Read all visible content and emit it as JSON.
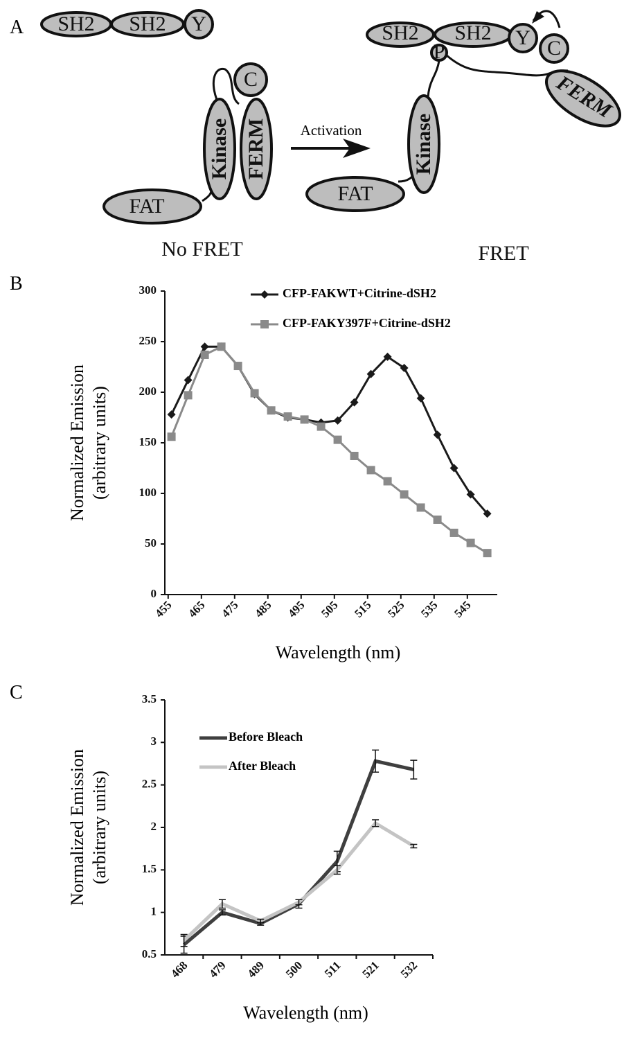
{
  "panel_labels": [
    "A",
    "B",
    "C"
  ],
  "diagram": {
    "left_domains": [
      "SH2",
      "SH2",
      "Y",
      "C",
      "Kinase",
      "FERM",
      "FAT"
    ],
    "left_caption": "No FRET",
    "arrow_label": "Activation",
    "right_domains": [
      "SH2",
      "SH2",
      "Y",
      "C",
      "P",
      "Kinase",
      "FERM",
      "FAT"
    ],
    "right_caption": "FRET"
  },
  "chart_data": [
    {
      "type": "line",
      "x_label": "Wavelength (nm)",
      "y_label": [
        "Normalized Emission",
        "(arbitrary units)"
      ],
      "x": [
        456,
        461,
        466,
        471,
        476,
        481,
        486,
        491,
        496,
        501,
        506,
        511,
        516,
        521,
        526,
        531,
        536,
        541,
        546,
        551
      ],
      "xlim": [
        454,
        554
      ],
      "xticks": [
        455,
        465,
        475,
        485,
        495,
        505,
        515,
        525,
        535,
        545
      ],
      "ylim": [
        0,
        300
      ],
      "yticks": [
        0,
        50,
        100,
        150,
        200,
        250,
        300
      ],
      "legend": "top",
      "series": [
        {
          "name": "CFP-FAKWT+Citrine-dSH2",
          "color": "#1a1a1a",
          "marker": "diamond",
          "values": [
            178,
            212,
            245,
            245,
            226,
            198,
            182,
            175,
            173,
            170,
            172,
            190,
            218,
            235,
            224,
            194,
            158,
            125,
            99,
            80
          ]
        },
        {
          "name": "CFP-FAKY397F+Citrine-dSH2",
          "color": "#8a8a8a",
          "marker": "square",
          "values": [
            156,
            197,
            237,
            245,
            226,
            199,
            182,
            176,
            173,
            166,
            153,
            137,
            123,
            112,
            99,
            86,
            74,
            61,
            51,
            41
          ]
        }
      ]
    },
    {
      "type": "line",
      "x_label": "Wavelength (nm)",
      "y_label": [
        "Normalized Emission",
        "(arbitrary units)"
      ],
      "categories": [
        "468",
        "479",
        "489",
        "500",
        "511",
        "521",
        "532"
      ],
      "ylim": [
        0.5,
        3.5
      ],
      "yticks": [
        0.5,
        1,
        1.5,
        2,
        2.5,
        3,
        3.5
      ],
      "legend": "top-left",
      "series": [
        {
          "name": "Before Bleach",
          "color": "#3f3f3f",
          "values": [
            0.62,
            1.0,
            0.87,
            1.1,
            1.6,
            2.78,
            2.68
          ],
          "errors": [
            0.1,
            0.03,
            0.02,
            0.05,
            0.12,
            0.13,
            0.11
          ]
        },
        {
          "name": "After Bleach",
          "color": "#c4c4c4",
          "values": [
            0.67,
            1.1,
            0.9,
            1.12,
            1.5,
            2.05,
            1.78
          ],
          "errors": [
            0.07,
            0.05,
            0.02,
            0.03,
            0.05,
            0.04,
            0.02
          ]
        }
      ]
    }
  ]
}
